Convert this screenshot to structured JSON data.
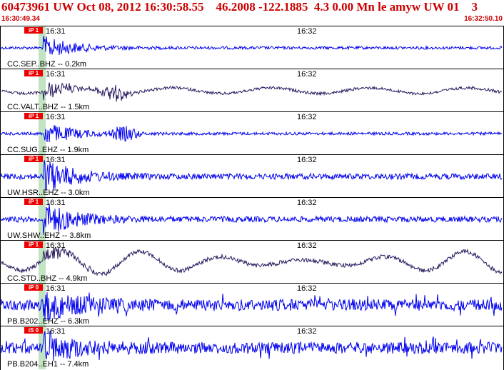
{
  "header": {
    "title": "60473961 UW Oct 08, 2012 16:30:58.55    46.2008 -122.1885  4.3 0.00 Mn le amyw UW 01    3",
    "start_time": "16:30:49.34",
    "end_time": "16:32:50.10"
  },
  "colors": {
    "header_text": "#cc0000",
    "trace_blue": "#0000ee",
    "trace_purple": "#2a1a5e",
    "pick_red": "#ee0000",
    "pick_window": "#a8d8a8"
  },
  "traces": [
    {
      "label": "CC.SEP..BHZ -- 0.2km",
      "pick": "iP 1",
      "tick1": "16:31",
      "tick2": "16:32",
      "color": "blue",
      "style": "quiet"
    },
    {
      "label": "CC.VALT..BHZ -- 1.5km",
      "pick": "iP 1",
      "tick1": "16:31",
      "tick2": "16:32",
      "color": "purple",
      "style": "waves-small"
    },
    {
      "label": "CC.SUG..EHZ -- 1.9km",
      "pick": "iP 1",
      "tick1": "16:31",
      "tick2": "16:32",
      "color": "blue",
      "style": "quiet"
    },
    {
      "label": "UW.HSR..EHZ -- 3.0km",
      "pick": "iP 1",
      "tick1": "16:31",
      "tick2": "16:32",
      "color": "blue",
      "style": "medium"
    },
    {
      "label": "UW.SHW..EHZ -- 3.8km",
      "pick": "iP 1",
      "tick1": "16:31",
      "tick2": "16:32",
      "color": "blue",
      "style": "medium"
    },
    {
      "label": "CC.STD..BHZ -- 4.9km",
      "pick": "iP 1",
      "tick1": "16:31",
      "tick2": "16:32",
      "color": "purple",
      "style": "waves-large"
    },
    {
      "label": "PB.B202..EHZ -- 6.3km",
      "pick": "iP 0",
      "tick1": "16:31",
      "tick2": "16:32",
      "color": "blue",
      "style": "noisy"
    },
    {
      "label": "PB.B204..EH1 -- 7.4km",
      "pick": "iS 0",
      "tick1": "16:31",
      "tick2": "16:32",
      "color": "blue",
      "style": "noisy"
    }
  ]
}
